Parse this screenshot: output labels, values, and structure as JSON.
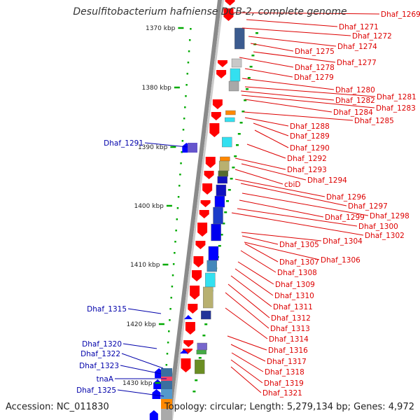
{
  "title": "Desulfitobacterium hafniense DCB-2, complete genome",
  "accession": "Accession: NC_011830",
  "topology": "Topology: circular; Length: 5,279,134 bp; Genes: 4,972",
  "colors": {
    "gene_label": "#dd0000",
    "left_gene_label": "#0000aa",
    "forward_gene": "#ff0000",
    "reverse_gene": "#0000ff",
    "tick": "#00aa00",
    "backbone": "#999999"
  },
  "scale_ticks": [
    "1370 kbp",
    "1380 kbp",
    "1390 kbp",
    "1400 kbp",
    "1410 kbp",
    "1420 kbp",
    "1430 kbp"
  ],
  "right_labels": [
    "Dhaf_1269",
    "Dhaf_1271",
    "Dhaf_1272",
    "Dhaf_1274",
    "Dhaf_1275",
    "Dhaf_1277",
    "Dhaf_1278",
    "Dhaf_1279",
    "Dhaf_1280",
    "Dhaf_1281",
    "Dhaf_1282",
    "Dhaf_1283",
    "Dhaf_1284",
    "Dhaf_1285",
    "Dhaf_1288",
    "Dhaf_1289",
    "Dhaf_1290",
    "Dhaf_1292",
    "Dhaf_1293",
    "Dhaf_1294",
    "cbiD",
    "Dhaf_1296",
    "Dhaf_1297",
    "Dhaf_1298",
    "Dhaf_1299",
    "Dhaf_1300",
    "Dhaf_1302",
    "Dhaf_1304",
    "Dhaf_1305",
    "Dhaf_1306",
    "Dhaf_1307",
    "Dhaf_1308",
    "Dhaf_1309",
    "Dhaf_1310",
    "Dhaf_1311",
    "Dhaf_1312",
    "Dhaf_1313",
    "Dhaf_1314",
    "Dhaf_1316",
    "Dhaf_1317",
    "Dhaf_1318",
    "Dhaf_1319",
    "Dhaf_1321"
  ],
  "left_labels": [
    "Dhaf_1291",
    "Dhaf_1315",
    "Dhaf_1320",
    "Dhaf_1322",
    "Dhaf_1323",
    "tnaA",
    "Dhaf_1325"
  ]
}
